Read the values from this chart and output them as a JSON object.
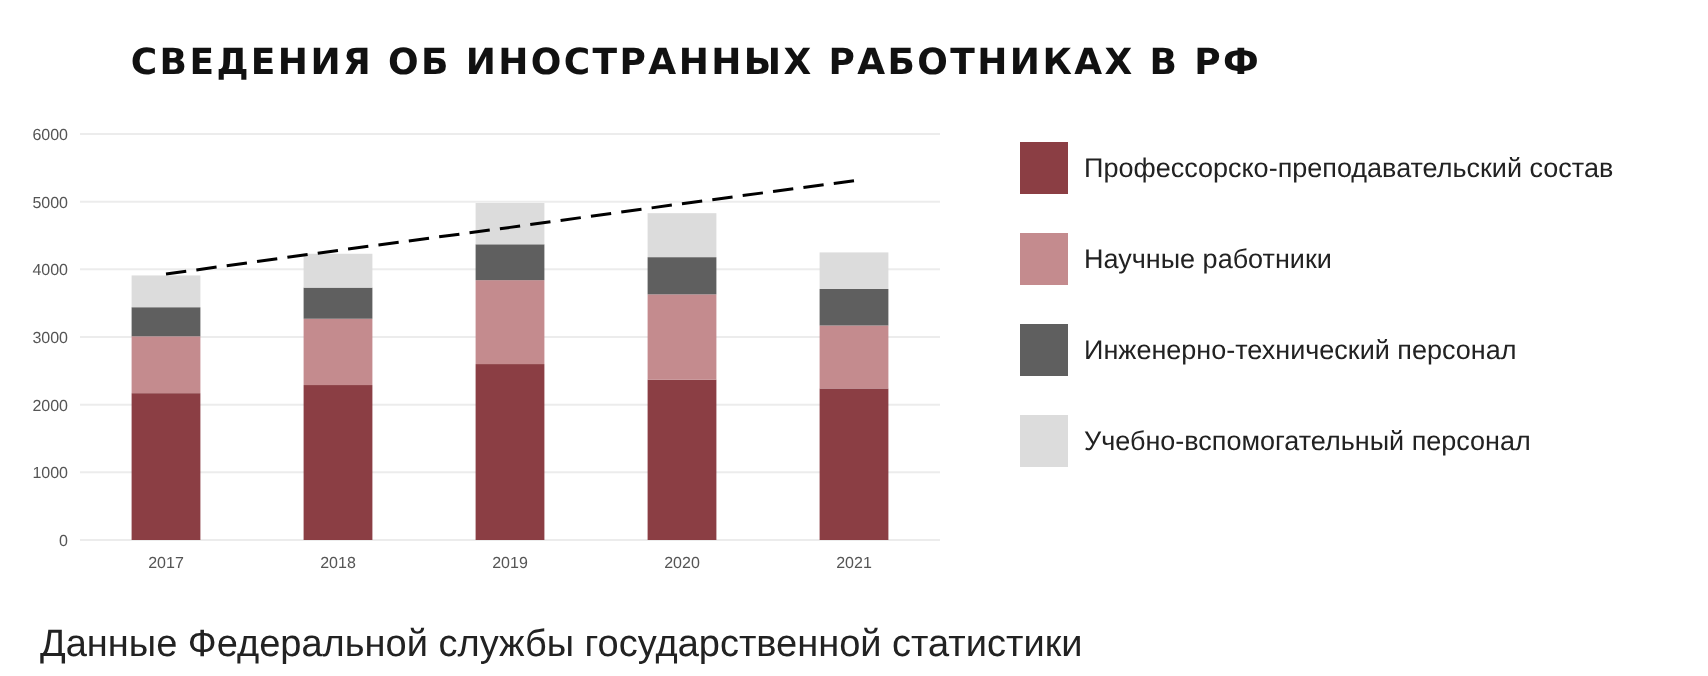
{
  "chart_data": {
    "type": "bar",
    "title": "СВЕДЕНИЯ ОБ ИНОСТРАННЫХ РАБОТНИКАХ В РФ",
    "categories": [
      "2017",
      "2018",
      "2019",
      "2020",
      "2021"
    ],
    "stacked": true,
    "series": [
      {
        "name": "Профессорско-преподавательский состав",
        "color": "#8b3e44",
        "values": [
          2170,
          2290,
          2600,
          2370,
          2240
        ]
      },
      {
        "name": "Научные работники",
        "color": "#c48b8e",
        "values": [
          840,
          980,
          1240,
          1260,
          930
        ]
      },
      {
        "name": "Инженерно-технический персонал",
        "color": "#5f5f5f",
        "values": [
          430,
          460,
          530,
          550,
          540
        ]
      },
      {
        "name": "Учебно-вспомогательный персонал",
        "color": "#dcdcdc",
        "values": [
          470,
          500,
          610,
          650,
          540
        ]
      },
      {
        "type": "line",
        "color": "#000000",
        "line_style": "dashed",
        "values": [
          3930,
          4280,
          4620,
          4970,
          5310
        ]
      }
    ],
    "ylim": [
      0,
      6000
    ],
    "yticks": [
      0,
      1000,
      2000,
      3000,
      4000,
      5000,
      6000
    ],
    "grid": "y",
    "legend": "right",
    "annotations": [
      "Данные Федеральной службы государственной статистики"
    ]
  }
}
